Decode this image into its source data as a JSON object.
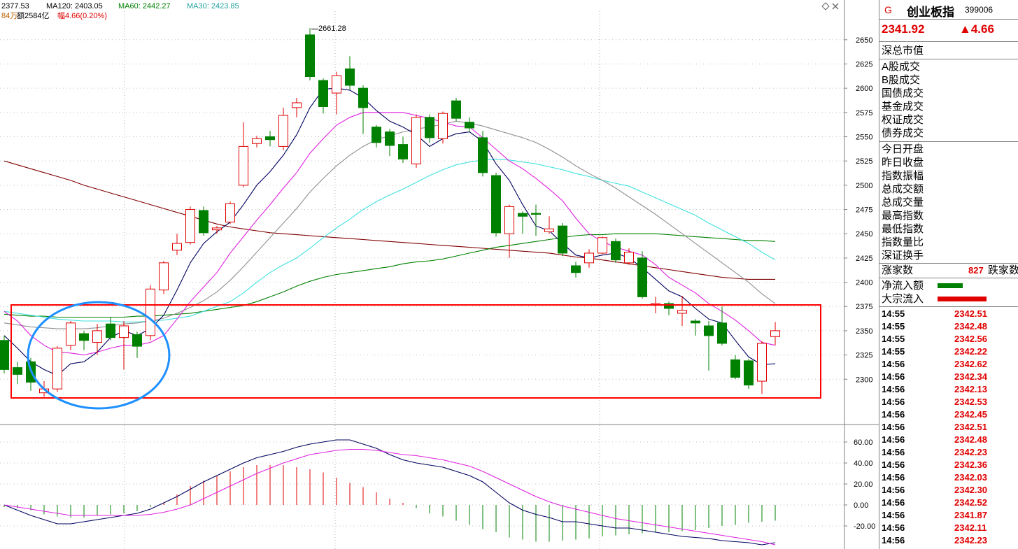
{
  "header": {
    "ma_fragment": "2377.53",
    "ma120_label": "MA120: 2403.05",
    "ma60_label": "MA60: 2442.27",
    "ma30_label": "MA30: 2423.85",
    "vol_fragment": "84万",
    "amount_label": "额2584亿",
    "range_label": "幅4.66(0.20%)",
    "high_annotation": "2661.28"
  },
  "sidebar": {
    "badge": "G",
    "name": "创业板指",
    "code": "399006",
    "price": "2341.92",
    "change": "▲4.66",
    "group1": [
      "深总市值"
    ],
    "group2": [
      "A股成交",
      "B股成交",
      "国债成交",
      "基金成交",
      "权证成交",
      "债券成交"
    ],
    "group3": [
      "今日开盘",
      "昨日收盘",
      "指数振幅",
      "总成交额",
      "总成交量",
      "最高指数",
      "最低指数",
      "指数量比",
      "深证换手"
    ],
    "rise_label": "涨家数",
    "rise_value": "827",
    "fall_label": "跌家数",
    "netflow_label": "净流入额",
    "block_label": "大宗流入",
    "ticks": [
      {
        "t": "14:55",
        "p": "2342.51"
      },
      {
        "t": "14:55",
        "p": "2342.48"
      },
      {
        "t": "14:55",
        "p": "2342.56"
      },
      {
        "t": "14:55",
        "p": "2342.22"
      },
      {
        "t": "14:56",
        "p": "2342.62"
      },
      {
        "t": "14:56",
        "p": "2342.34"
      },
      {
        "t": "14:56",
        "p": "2342.13"
      },
      {
        "t": "14:56",
        "p": "2342.53"
      },
      {
        "t": "14:56",
        "p": "2342.45"
      },
      {
        "t": "14:56",
        "p": "2342.51"
      },
      {
        "t": "14:56",
        "p": "2342.48"
      },
      {
        "t": "14:56",
        "p": "2342.23"
      },
      {
        "t": "14:56",
        "p": "2342.36"
      },
      {
        "t": "14:56",
        "p": "2342.03"
      },
      {
        "t": "14:56",
        "p": "2342.30"
      },
      {
        "t": "14:56",
        "p": "2342.52"
      },
      {
        "t": "14:56",
        "p": "2341.87"
      },
      {
        "t": "14:56",
        "p": "2342.11"
      },
      {
        "t": "14:56",
        "p": "2342.23"
      }
    ]
  },
  "colors": {
    "up": "#e00000",
    "down": "#008000",
    "ma5": "#000060",
    "ma10": "#e020e0",
    "ma20": "#909090",
    "ma30": "#40e0e0",
    "ma60": "#008000",
    "ma120": "#800000",
    "highlight_box": "#ff0000",
    "highlight_ellipse": "#1e90ff"
  },
  "chart_data": [
    {
      "type": "candlestick",
      "title": "",
      "ylim": [
        2280,
        2665
      ],
      "y_ticks": [
        2300,
        2325,
        2350,
        2375,
        2400,
        2425,
        2450,
        2475,
        2500,
        2525,
        2550,
        2575,
        2600,
        2625,
        2650
      ],
      "candles": [
        {
          "o": 2340,
          "c": 2310,
          "h": 2345,
          "l": 2306
        },
        {
          "o": 2312,
          "c": 2305,
          "h": 2318,
          "l": 2295
        },
        {
          "o": 2318,
          "c": 2297,
          "h": 2322,
          "l": 2288
        },
        {
          "o": 2286,
          "c": 2290,
          "h": 2298,
          "l": 2282
        },
        {
          "o": 2290,
          "c": 2332,
          "h": 2334,
          "l": 2287
        },
        {
          "o": 2335,
          "c": 2358,
          "h": 2360,
          "l": 2330
        },
        {
          "o": 2347,
          "c": 2340,
          "h": 2350,
          "l": 2330
        },
        {
          "o": 2338,
          "c": 2350,
          "h": 2357,
          "l": 2325
        },
        {
          "o": 2357,
          "c": 2343,
          "h": 2364,
          "l": 2340
        },
        {
          "o": 2343,
          "c": 2355,
          "h": 2360,
          "l": 2310
        },
        {
          "o": 2346,
          "c": 2334,
          "h": 2349,
          "l": 2322
        },
        {
          "o": 2345,
          "c": 2393,
          "h": 2397,
          "l": 2340
        },
        {
          "o": 2392,
          "c": 2420,
          "h": 2422,
          "l": 2388
        },
        {
          "o": 2433,
          "c": 2440,
          "h": 2450,
          "l": 2428
        },
        {
          "o": 2441,
          "c": 2475,
          "h": 2478,
          "l": 2439
        },
        {
          "o": 2474,
          "c": 2451,
          "h": 2478,
          "l": 2448
        },
        {
          "o": 2454,
          "c": 2456,
          "h": 2458,
          "l": 2450
        },
        {
          "o": 2462,
          "c": 2481,
          "h": 2483,
          "l": 2460
        },
        {
          "o": 2500,
          "c": 2540,
          "h": 2565,
          "l": 2498
        },
        {
          "o": 2543,
          "c": 2548,
          "h": 2551,
          "l": 2539
        },
        {
          "o": 2550,
          "c": 2547,
          "h": 2556,
          "l": 2540
        },
        {
          "o": 2540,
          "c": 2572,
          "h": 2580,
          "l": 2536
        },
        {
          "o": 2580,
          "c": 2585,
          "h": 2590,
          "l": 2570
        },
        {
          "o": 2655,
          "c": 2612,
          "h": 2662,
          "l": 2608
        },
        {
          "o": 2608,
          "c": 2581,
          "h": 2610,
          "l": 2574
        },
        {
          "o": 2595,
          "c": 2613,
          "h": 2617,
          "l": 2573
        },
        {
          "o": 2620,
          "c": 2603,
          "h": 2633,
          "l": 2598
        },
        {
          "o": 2600,
          "c": 2580,
          "h": 2603,
          "l": 2553
        },
        {
          "o": 2560,
          "c": 2544,
          "h": 2562,
          "l": 2539
        },
        {
          "o": 2555,
          "c": 2541,
          "h": 2558,
          "l": 2530
        },
        {
          "o": 2542,
          "c": 2527,
          "h": 2550,
          "l": 2523
        },
        {
          "o": 2522,
          "c": 2570,
          "h": 2573,
          "l": 2518
        },
        {
          "o": 2570,
          "c": 2549,
          "h": 2573,
          "l": 2544
        },
        {
          "o": 2548,
          "c": 2574,
          "h": 2576,
          "l": 2543
        },
        {
          "o": 2587,
          "c": 2569,
          "h": 2590,
          "l": 2566
        },
        {
          "o": 2565,
          "c": 2559,
          "h": 2570,
          "l": 2555
        },
        {
          "o": 2549,
          "c": 2513,
          "h": 2556,
          "l": 2509
        },
        {
          "o": 2510,
          "c": 2451,
          "h": 2513,
          "l": 2447
        },
        {
          "o": 2450,
          "c": 2478,
          "h": 2480,
          "l": 2425
        },
        {
          "o": 2471,
          "c": 2468,
          "h": 2473,
          "l": 2450
        },
        {
          "o": 2471,
          "c": 2470,
          "h": 2480,
          "l": 2448
        },
        {
          "o": 2452,
          "c": 2455,
          "h": 2468,
          "l": 2450
        },
        {
          "o": 2458,
          "c": 2430,
          "h": 2461,
          "l": 2427
        },
        {
          "o": 2417,
          "c": 2410,
          "h": 2421,
          "l": 2405
        },
        {
          "o": 2420,
          "c": 2430,
          "h": 2434,
          "l": 2415
        },
        {
          "o": 2430,
          "c": 2446,
          "h": 2447,
          "l": 2429
        },
        {
          "o": 2442,
          "c": 2423,
          "h": 2445,
          "l": 2420
        },
        {
          "o": 2420,
          "c": 2431,
          "h": 2435,
          "l": 2418
        },
        {
          "o": 2425,
          "c": 2385,
          "h": 2432,
          "l": 2383
        },
        {
          "o": 2377,
          "c": 2378,
          "h": 2385,
          "l": 2368
        },
        {
          "o": 2378,
          "c": 2373,
          "h": 2380,
          "l": 2366
        },
        {
          "o": 2368,
          "c": 2371,
          "h": 2386,
          "l": 2355
        },
        {
          "o": 2360,
          "c": 2358,
          "h": 2362,
          "l": 2345
        },
        {
          "o": 2355,
          "c": 2345,
          "h": 2360,
          "l": 2309
        },
        {
          "o": 2358,
          "c": 2337,
          "h": 2375,
          "l": 2335
        },
        {
          "o": 2320,
          "c": 2302,
          "h": 2325,
          "l": 2300
        },
        {
          "o": 2319,
          "c": 2294,
          "h": 2321,
          "l": 2290
        },
        {
          "o": 2298,
          "c": 2337,
          "h": 2339,
          "l": 2285
        },
        {
          "o": 2344,
          "c": 2350,
          "h": 2359,
          "l": 2335
        }
      ],
      "ma5": [
        2345,
        2332,
        2318,
        2310,
        2304,
        2316,
        2318,
        2328,
        2343,
        2350,
        2345,
        2352,
        2366,
        2392,
        2420,
        2440,
        2452,
        2462,
        2480,
        2500,
        2514,
        2531,
        2552,
        2580,
        2599,
        2600,
        2598,
        2590,
        2577,
        2566,
        2560,
        2552,
        2540,
        2548,
        2553,
        2555,
        2545,
        2522,
        2505,
        2480,
        2458,
        2453,
        2440,
        2428,
        2425,
        2428,
        2430,
        2425,
        2415,
        2403,
        2391,
        2385,
        2373,
        2362,
        2358,
        2340,
        2323,
        2315,
        2316
      ],
      "ma10": [
        2370,
        2360,
        2345,
        2335,
        2328,
        2327,
        2325,
        2328,
        2332,
        2335,
        2335,
        2338,
        2345,
        2362,
        2380,
        2395,
        2410,
        2430,
        2447,
        2464,
        2480,
        2497,
        2513,
        2533,
        2548,
        2562,
        2570,
        2575,
        2575,
        2575,
        2575,
        2572,
        2569,
        2565,
        2561,
        2560,
        2549,
        2537,
        2525,
        2517,
        2507,
        2496,
        2484,
        2466,
        2450,
        2442,
        2436,
        2432,
        2428,
        2418,
        2405,
        2397,
        2389,
        2378,
        2370,
        2361,
        2350,
        2338,
        2335
      ],
      "ma30": [
        2370,
        2368,
        2366,
        2364,
        2362,
        2361,
        2360,
        2360,
        2360,
        2359,
        2359,
        2360,
        2361,
        2363,
        2365,
        2370,
        2375,
        2380,
        2389,
        2400,
        2410,
        2418,
        2425,
        2435,
        2446,
        2456,
        2465,
        2475,
        2483,
        2490,
        2496,
        2503,
        2510,
        2516,
        2521,
        2524,
        2526,
        2527,
        2526,
        2524,
        2522,
        2519,
        2516,
        2512,
        2509,
        2505,
        2502,
        2499,
        2493,
        2487,
        2481,
        2475,
        2469,
        2461,
        2454,
        2447,
        2440,
        2431,
        2423
      ],
      "ma60": [
        2367,
        2366,
        2365,
        2365,
        2364,
        2364,
        2364,
        2364,
        2364,
        2364,
        2365,
        2365,
        2366,
        2367,
        2368,
        2370,
        2372,
        2374,
        2376,
        2380,
        2385,
        2390,
        2396,
        2401,
        2405,
        2408,
        2410,
        2412,
        2414,
        2416,
        2419,
        2421,
        2422,
        2424,
        2427,
        2430,
        2433,
        2436,
        2438,
        2440,
        2442,
        2444,
        2446,
        2448,
        2449,
        2449,
        2450,
        2450,
        2450,
        2450,
        2449,
        2448,
        2447,
        2446,
        2445,
        2444,
        2443,
        2443,
        2442
      ],
      "ma120": [
        2525,
        2521,
        2517,
        2513,
        2509,
        2505,
        2500,
        2496,
        2492,
        2488,
        2484,
        2480,
        2476,
        2472,
        2468,
        2464,
        2460,
        2457,
        2455,
        2453,
        2451,
        2450,
        2449,
        2448,
        2447,
        2446,
        2445,
        2444,
        2443,
        2442,
        2441,
        2440,
        2439,
        2438,
        2437,
        2436,
        2435,
        2434,
        2433,
        2432,
        2431,
        2430,
        2428,
        2426,
        2425,
        2423,
        2421,
        2419,
        2417,
        2415,
        2413,
        2411,
        2409,
        2407,
        2405,
        2404,
        2403,
        2403,
        2403
      ],
      "ma20": [
        2358,
        2356,
        2354,
        2353,
        2352,
        2352,
        2352,
        2353,
        2355,
        2357,
        2358,
        2360,
        2363,
        2368,
        2374,
        2381,
        2390,
        2402,
        2416,
        2431,
        2446,
        2461,
        2476,
        2493,
        2507,
        2520,
        2531,
        2540,
        2547,
        2551,
        2555,
        2558,
        2560,
        2563,
        2566,
        2564,
        2561,
        2557,
        2553,
        2549,
        2544,
        2537,
        2529,
        2520,
        2512,
        2505,
        2497,
        2488,
        2479,
        2470,
        2460,
        2450,
        2440,
        2430,
        2420,
        2410,
        2400,
        2388,
        2378
      ]
    },
    {
      "type": "bar",
      "title": "MACD",
      "ylim": [
        -42,
        68
      ],
      "y_ticks": [
        -20,
        0,
        20,
        40,
        60
      ],
      "y_tick_labels": [
        "-20.00",
        "0.00",
        "20.00",
        "40.00",
        "60.00"
      ],
      "hist": [
        -2,
        -3,
        -5,
        -9,
        -11,
        -12,
        -12,
        -10,
        -9,
        -8,
        -6,
        -2,
        2,
        10,
        18,
        23,
        28,
        32,
        36,
        38,
        38,
        38,
        36,
        34,
        31,
        26,
        21,
        17,
        12,
        6,
        2,
        -3,
        -8,
        -11,
        -15,
        -19,
        -23,
        -26,
        -31,
        -33,
        -35,
        -35,
        -34,
        -33,
        -32,
        -30,
        -29,
        -28,
        -27,
        -26,
        -26,
        -25,
        -24,
        -22,
        -20,
        -19,
        -17,
        -16,
        -15
      ],
      "line1": [
        0,
        -5,
        -10,
        -14,
        -18,
        -18,
        -16,
        -14,
        -12,
        -10,
        -8,
        -4,
        2,
        8,
        15,
        22,
        28,
        34,
        40,
        45,
        48,
        51,
        55,
        58,
        60,
        62,
        62,
        58,
        54,
        48,
        43,
        40,
        38,
        36,
        32,
        28,
        22,
        12,
        2,
        -5,
        -9,
        -12,
        -16,
        -16,
        -18,
        -20,
        -22,
        -22,
        -24,
        -26,
        -28,
        -30,
        -31,
        -32,
        -34,
        -35,
        -36,
        -38,
        -36
      ],
      "line2": [
        0,
        -2,
        -4,
        -6,
        -8,
        -10,
        -10,
        -10,
        -10,
        -10,
        -10,
        -9,
        -7,
        -4,
        0,
        6,
        12,
        18,
        24,
        30,
        35,
        40,
        44,
        48,
        50,
        52,
        53,
        53,
        52,
        50,
        48,
        47,
        45,
        43,
        40,
        37,
        32,
        26,
        20,
        14,
        8,
        3,
        -1,
        -4,
        -7,
        -10,
        -13,
        -15,
        -17,
        -19,
        -21,
        -23,
        -25,
        -27,
        -29,
        -31,
        -33,
        -35,
        -38
      ]
    }
  ]
}
